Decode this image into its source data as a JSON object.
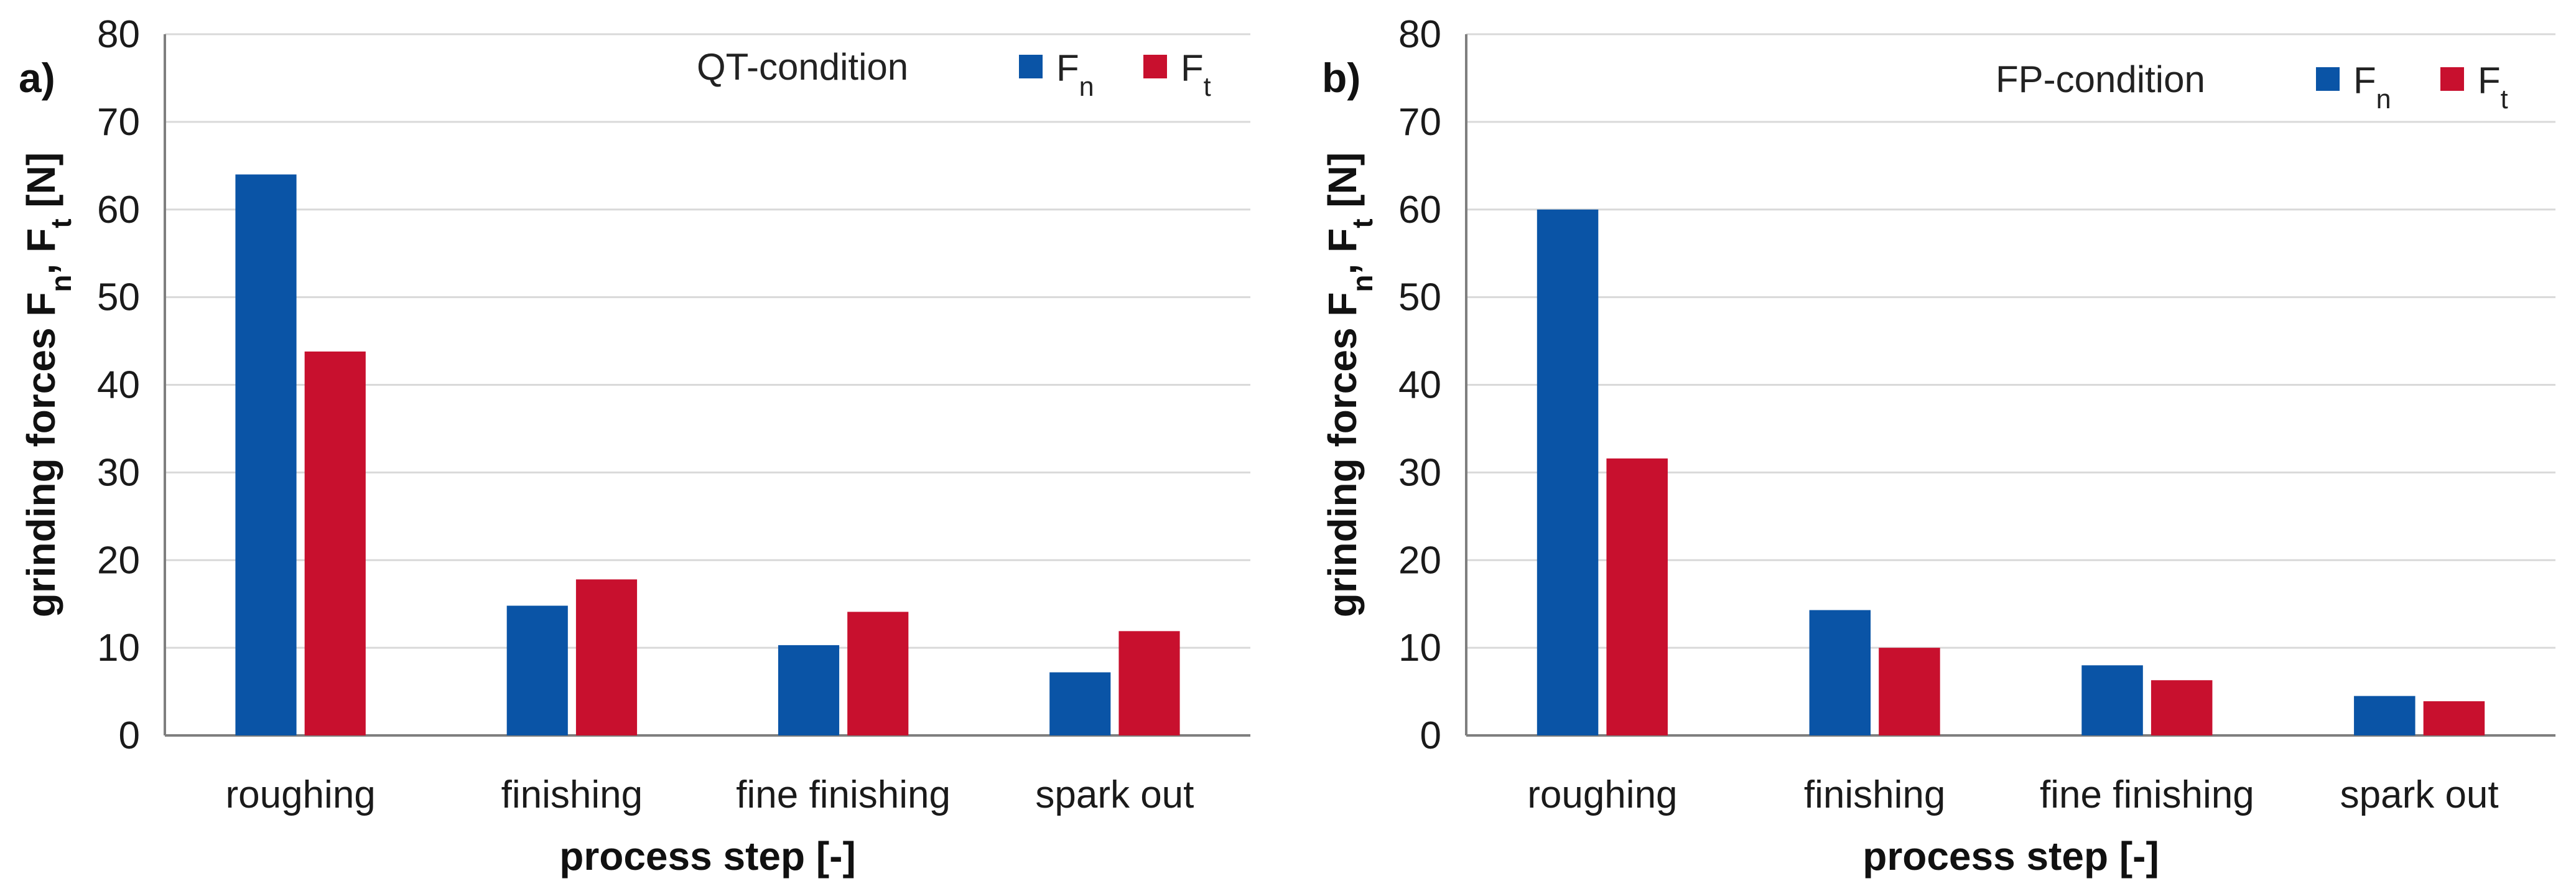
{
  "colors": {
    "fn": "#0a54a6",
    "ft": "#c8102e"
  },
  "chart_data": [
    {
      "type": "bar",
      "panel_label": "a)",
      "condition": "QT-condition",
      "categories": [
        "roughing",
        "finishing",
        "fine finishing",
        "spark out"
      ],
      "series": [
        {
          "name": "Fn",
          "base": "F",
          "sub": "n",
          "values": [
            64,
            14.8,
            10.3,
            7.2
          ]
        },
        {
          "name": "Ft",
          "base": "F",
          "sub": "t",
          "values": [
            43.8,
            17.8,
            14.1,
            11.9
          ]
        }
      ],
      "ylim": [
        0,
        80
      ],
      "yticks": [
        "0",
        "10",
        "20",
        "30",
        "40",
        "50",
        "60",
        "70",
        "80"
      ],
      "ylabel_text": "grinding forces F",
      "ylabel_sub1": "n",
      "ylabel_mid": ", F",
      "ylabel_sub2": "t",
      "ylabel_unit": " [N]",
      "xlabel": "process step [-]",
      "legend": "top-right"
    },
    {
      "type": "bar",
      "panel_label": "b)",
      "condition": "FP-condition",
      "categories": [
        "roughing",
        "finishing",
        "fine finishing",
        "spark out"
      ],
      "series": [
        {
          "name": "Fn",
          "base": "F",
          "sub": "n",
          "values": [
            60,
            14.3,
            8,
            4.5
          ]
        },
        {
          "name": "Ft",
          "base": "F",
          "sub": "t",
          "values": [
            31.6,
            10,
            6.3,
            3.9
          ]
        }
      ],
      "ylim": [
        0,
        80
      ],
      "yticks": [
        "0",
        "10",
        "20",
        "30",
        "40",
        "50",
        "60",
        "70",
        "80"
      ],
      "ylabel_text": "grinding forces F",
      "ylabel_sub1": "n",
      "ylabel_mid": ", F",
      "ylabel_sub2": "t",
      "ylabel_unit": " [N]",
      "xlabel": "process step [-]",
      "legend": "top-right"
    }
  ]
}
